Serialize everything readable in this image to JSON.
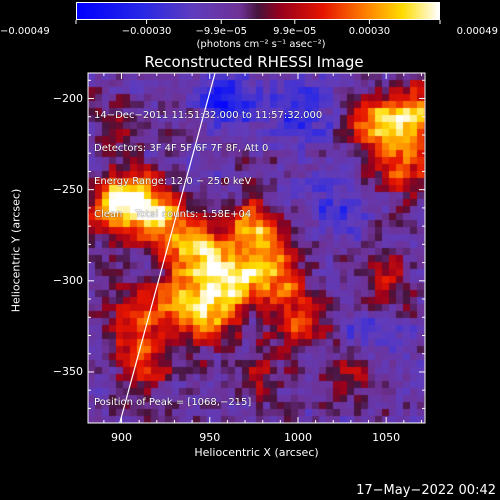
{
  "colorbar": {
    "tick_labels": [
      "−0.00049",
      "−0.00030",
      "−9.9e−05",
      "9.9e−05",
      "0.00030",
      "0.00049"
    ],
    "unit_label": "(photons cm⁻² s⁻¹ asec⁻²)"
  },
  "chart_data": {
    "type": "heatmap",
    "title": "Reconstructed RHESSI Image",
    "xlabel": "Heliocentric X (arcsec)",
    "ylabel": "Heliocentric Y (arcsec)",
    "xlim": [
      881,
      1072
    ],
    "ylim": [
      -378,
      -186
    ],
    "x_ticks": [
      {
        "value": 900,
        "label": "900"
      },
      {
        "value": 950,
        "label": "950"
      },
      {
        "value": 1000,
        "label": "1000"
      },
      {
        "value": 1050,
        "label": "1050"
      }
    ],
    "y_ticks": [
      {
        "value": -200,
        "label": "−200"
      },
      {
        "value": -250,
        "label": "−250"
      },
      {
        "value": -300,
        "label": "−300"
      },
      {
        "value": -350,
        "label": "−350"
      }
    ],
    "color_range": [
      -0.00049,
      0.00049
    ],
    "limb_line": {
      "x": [
        899,
        953
      ],
      "y": [
        -378,
        -186
      ]
    },
    "info_lines": [
      "14−Dec−2011 11:51:32.000 to 11:57:32.000",
      "Detectors: 3F 4F 5F 6F 7F 8F, Att 0",
      "Energy Range: 12.0 − 25.0 keV",
      "Clean    Total counts: 1.58E+04"
    ],
    "peak_label": "Position of Peak = [1068,−215]",
    "peak_position": [
      1068,
      -215
    ],
    "bright_sources": [
      {
        "x": 894,
        "y": -260,
        "amp": 0.0004
      },
      {
        "x": 910,
        "y": -255,
        "amp": 0.00042
      },
      {
        "x": 925,
        "y": -270,
        "amp": 0.00038
      },
      {
        "x": 945,
        "y": -285,
        "amp": 0.00044
      },
      {
        "x": 960,
        "y": -300,
        "amp": 0.00046
      },
      {
        "x": 975,
        "y": -270,
        "amp": 0.0004
      },
      {
        "x": 985,
        "y": -295,
        "amp": 0.00042
      },
      {
        "x": 950,
        "y": -320,
        "amp": 0.00036
      },
      {
        "x": 930,
        "y": -310,
        "amp": 0.00034
      },
      {
        "x": 1000,
        "y": -320,
        "amp": 0.0003
      },
      {
        "x": 915,
        "y": -345,
        "amp": 0.00028
      },
      {
        "x": 905,
        "y": -320,
        "amp": 0.00024
      },
      {
        "x": 1045,
        "y": -215,
        "amp": 0.0004
      },
      {
        "x": 1065,
        "y": -210,
        "amp": 0.00044
      },
      {
        "x": 1060,
        "y": -240,
        "amp": 0.0003
      },
      {
        "x": 1050,
        "y": -300,
        "amp": 0.00022
      },
      {
        "x": 1030,
        "y": -350,
        "amp": 0.0002
      },
      {
        "x": 980,
        "y": -350,
        "amp": 0.00018
      },
      {
        "x": 895,
        "y": -215,
        "amp": 0.00014
      }
    ],
    "dark_sources": [
      {
        "x": 960,
        "y": -200,
        "amp": -0.0003
      },
      {
        "x": 1000,
        "y": -205,
        "amp": -0.00024
      },
      {
        "x": 1020,
        "y": -260,
        "amp": -0.00018
      },
      {
        "x": 1040,
        "y": -330,
        "amp": -0.00016
      }
    ]
  },
  "footer": {
    "timestamp": "17−May−2022 00:42"
  }
}
